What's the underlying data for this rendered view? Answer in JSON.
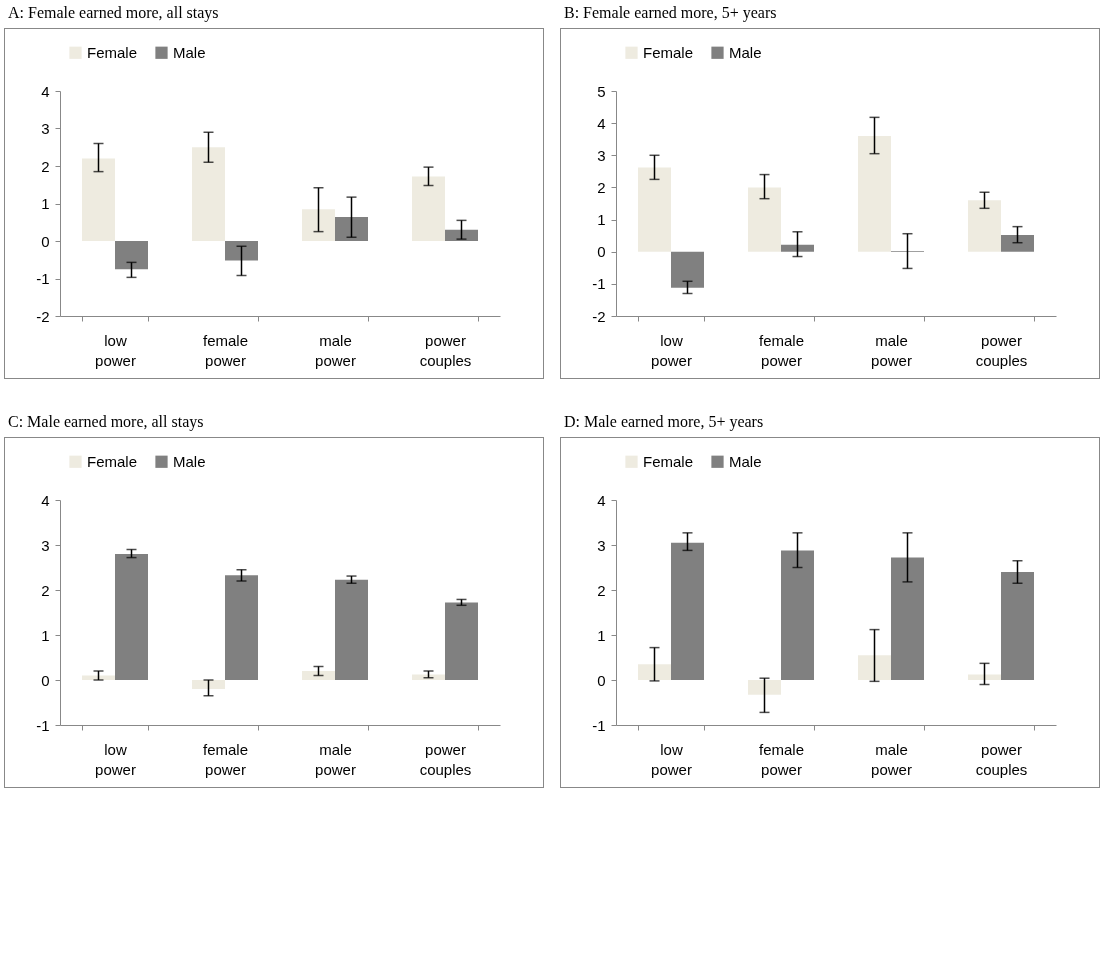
{
  "chart_data": [
    {
      "type": "bar",
      "title": "A: Female earned more, all stays",
      "categories": [
        "low power",
        "female power",
        "male power",
        "power couples"
      ],
      "ylim": [
        -2,
        4
      ],
      "yticks": [
        -2,
        -1,
        0,
        1,
        2,
        3,
        4
      ],
      "legend": "top",
      "series": [
        {
          "name": "Female",
          "color": "#eeebe0",
          "values": [
            2.2,
            2.5,
            0.85,
            1.72
          ],
          "errors": [
            [
              1.85,
              2.6
            ],
            [
              2.1,
              2.9
            ],
            [
              0.25,
              1.42
            ],
            [
              1.48,
              1.97
            ]
          ]
        },
        {
          "name": "Male",
          "color": "#808080",
          "values": [
            -0.75,
            -0.52,
            0.64,
            0.3
          ],
          "errors": [
            [
              -0.97,
              -0.57
            ],
            [
              -0.92,
              -0.14
            ],
            [
              0.1,
              1.17
            ],
            [
              0.05,
              0.55
            ]
          ]
        }
      ]
    },
    {
      "type": "bar",
      "title": "B: Female earned more, 5+ years",
      "categories": [
        "low power",
        "female power",
        "male power",
        "power couples"
      ],
      "ylim": [
        -2,
        5
      ],
      "yticks": [
        -2,
        -1,
        0,
        1,
        2,
        3,
        4,
        5
      ],
      "legend": "top",
      "series": [
        {
          "name": "Female",
          "color": "#eeebe0",
          "values": [
            2.62,
            2.0,
            3.6,
            1.6
          ],
          "errors": [
            [
              2.25,
              3.0
            ],
            [
              1.65,
              2.4
            ],
            [
              3.05,
              4.18
            ],
            [
              1.35,
              1.85
            ]
          ]
        },
        {
          "name": "Male",
          "color": "#808080",
          "values": [
            -1.12,
            0.22,
            0.02,
            0.52
          ],
          "errors": [
            [
              -1.3,
              -0.92
            ],
            [
              -0.15,
              0.62
            ],
            [
              -0.52,
              0.56
            ],
            [
              0.28,
              0.78
            ]
          ]
        }
      ]
    },
    {
      "type": "bar",
      "title": "C: Male earned more, all stays",
      "categories": [
        "low power",
        "female power",
        "male power",
        "power couples"
      ],
      "ylim": [
        -1,
        4
      ],
      "yticks": [
        -1,
        0,
        1,
        2,
        3,
        4
      ],
      "legend": "top",
      "series": [
        {
          "name": "Female",
          "color": "#eeebe0",
          "values": [
            0.1,
            -0.2,
            0.2,
            0.12
          ],
          "errors": [
            [
              0.0,
              0.2
            ],
            [
              -0.35,
              0.0
            ],
            [
              0.1,
              0.3
            ],
            [
              0.05,
              0.2
            ]
          ]
        },
        {
          "name": "Male",
          "color": "#808080",
          "values": [
            2.8,
            2.33,
            2.23,
            1.72
          ],
          "errors": [
            [
              2.72,
              2.9
            ],
            [
              2.2,
              2.45
            ],
            [
              2.15,
              2.31
            ],
            [
              1.66,
              1.79
            ]
          ]
        }
      ]
    },
    {
      "type": "bar",
      "title": "D: Male earned more, 5+ years",
      "categories": [
        "low power",
        "female power",
        "male power",
        "power couples"
      ],
      "ylim": [
        -1,
        4
      ],
      "yticks": [
        -1,
        0,
        1,
        2,
        3,
        4
      ],
      "legend": "top",
      "series": [
        {
          "name": "Female",
          "color": "#eeebe0",
          "values": [
            0.35,
            -0.33,
            0.55,
            0.12
          ],
          "errors": [
            [
              -0.02,
              0.72
            ],
            [
              -0.72,
              0.04
            ],
            [
              -0.03,
              1.12
            ],
            [
              -0.1,
              0.37
            ]
          ]
        },
        {
          "name": "Male",
          "color": "#808080",
          "values": [
            3.05,
            2.88,
            2.72,
            2.4
          ],
          "errors": [
            [
              2.88,
              3.27
            ],
            [
              2.5,
              3.27
            ],
            [
              2.18,
              3.27
            ],
            [
              2.15,
              2.65
            ]
          ]
        }
      ]
    }
  ]
}
